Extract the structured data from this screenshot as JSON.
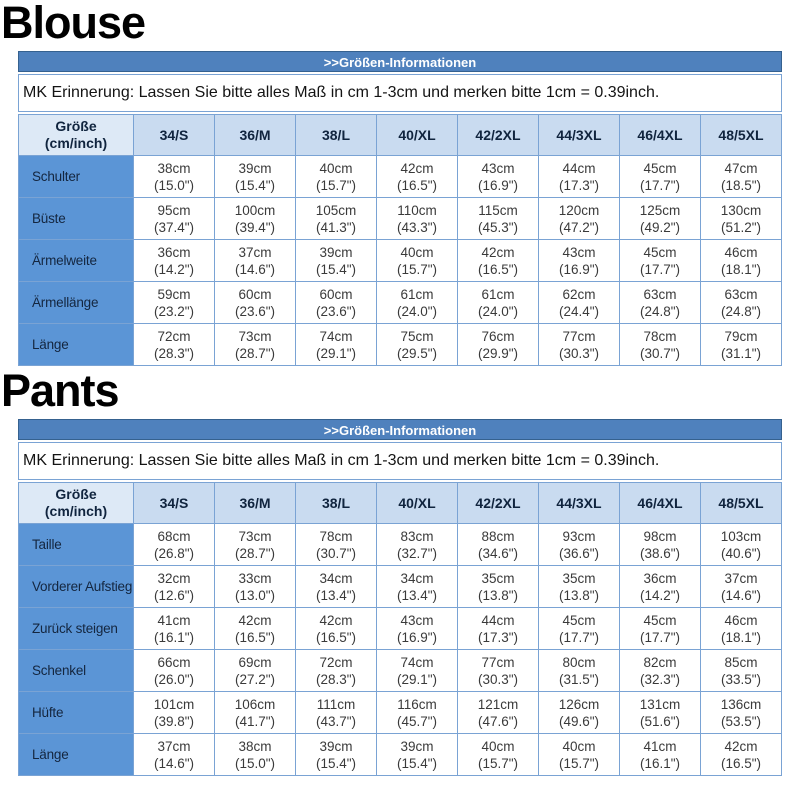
{
  "colors": {
    "bar_background": "#4f81bd",
    "column_header_background": "#c9dbf0",
    "corner_header_background": "#dde9f6",
    "row_label_background": "#5b95d6",
    "table_border": "#7aa3d4",
    "bar_text": "#ffffff"
  },
  "sections": [
    {
      "title": "Blouse",
      "table": {
        "header": ">>Größen-Informationen",
        "note": "MK Erinnerung: Lassen Sie bitte alles Maß in cm 1-3cm und merken bitte 1cm = 0.39inch.",
        "corner": {
          "line1": "Größe",
          "line2": "(cm/inch)"
        },
        "columns": [
          "34/S",
          "36/M",
          "38/L",
          "40/XL",
          "42/2XL",
          "44/3XL",
          "46/4XL",
          "48/5XL"
        ],
        "rows": [
          {
            "label": "Schulter",
            "cm": [
              "38cm",
              "39cm",
              "40cm",
              "42cm",
              "43cm",
              "44cm",
              "45cm",
              "47cm"
            ],
            "inch": [
              "(15.0\")",
              "(15.4\")",
              "(15.7\")",
              "(16.5\")",
              "(16.9\")",
              "(17.3\")",
              "(17.7\")",
              "(18.5\")"
            ]
          },
          {
            "label": "Büste",
            "cm": [
              "95cm",
              "100cm",
              "105cm",
              "110cm",
              "115cm",
              "120cm",
              "125cm",
              "130cm"
            ],
            "inch": [
              "(37.4\")",
              "(39.4\")",
              "(41.3\")",
              "(43.3\")",
              "(45.3\")",
              "(47.2\")",
              "(49.2\")",
              "(51.2\")"
            ]
          },
          {
            "label": "Ärmelweite",
            "cm": [
              "36cm",
              "37cm",
              "39cm",
              "40cm",
              "42cm",
              "43cm",
              "45cm",
              "46cm"
            ],
            "inch": [
              "(14.2\")",
              "(14.6\")",
              "(15.4\")",
              "(15.7\")",
              "(16.5\")",
              "(16.9\")",
              "(17.7\")",
              "(18.1\")"
            ]
          },
          {
            "label": "Ärmellänge",
            "cm": [
              "59cm",
              "60cm",
              "60cm",
              "61cm",
              "61cm",
              "62cm",
              "63cm",
              "63cm"
            ],
            "inch": [
              "(23.2\")",
              "(23.6\")",
              "(23.6\")",
              "(24.0\")",
              "(24.0\")",
              "(24.4\")",
              "(24.8\")",
              "(24.8\")"
            ]
          },
          {
            "label": "Länge",
            "cm": [
              "72cm",
              "73cm",
              "74cm",
              "75cm",
              "76cm",
              "77cm",
              "78cm",
              "79cm"
            ],
            "inch": [
              "(28.3\")",
              "(28.7\")",
              "(29.1\")",
              "(29.5\")",
              "(29.9\")",
              "(30.3\")",
              "(30.7\")",
              "(31.1\")"
            ]
          }
        ]
      }
    },
    {
      "title": "Pants",
      "table": {
        "header": ">>Größen-Informationen",
        "note": "MK Erinnerung: Lassen Sie bitte alles Maß in cm 1-3cm und merken bitte 1cm = 0.39inch.",
        "corner": {
          "line1": "Größe",
          "line2": "(cm/inch)"
        },
        "columns": [
          "34/S",
          "36/M",
          "38/L",
          "40/XL",
          "42/2XL",
          "44/3XL",
          "46/4XL",
          "48/5XL"
        ],
        "rows": [
          {
            "label": "Taille",
            "cm": [
              "68cm",
              "73cm",
              "78cm",
              "83cm",
              "88cm",
              "93cm",
              "98cm",
              "103cm"
            ],
            "inch": [
              "(26.8\")",
              "(28.7\")",
              "(30.7\")",
              "(32.7\")",
              "(34.6\")",
              "(36.6\")",
              "(38.6\")",
              "(40.6\")"
            ]
          },
          {
            "label": "Vorderer Aufstieg",
            "cm": [
              "32cm",
              "33cm",
              "34cm",
              "34cm",
              "35cm",
              "35cm",
              "36cm",
              "37cm"
            ],
            "inch": [
              "(12.6\")",
              "(13.0\")",
              "(13.4\")",
              "(13.4\")",
              "(13.8\")",
              "(13.8\")",
              "(14.2\")",
              "(14.6\")"
            ]
          },
          {
            "label": "Zurück steigen",
            "cm": [
              "41cm",
              "42cm",
              "42cm",
              "43cm",
              "44cm",
              "45cm",
              "45cm",
              "46cm"
            ],
            "inch": [
              "(16.1\")",
              "(16.5\")",
              "(16.5\")",
              "(16.9\")",
              "(17.3\")",
              "(17.7\")",
              "(17.7\")",
              "(18.1\")"
            ]
          },
          {
            "label": "Schenkel",
            "cm": [
              "66cm",
              "69cm",
              "72cm",
              "74cm",
              "77cm",
              "80cm",
              "82cm",
              "85cm"
            ],
            "inch": [
              "(26.0\")",
              "(27.2\")",
              "(28.3\")",
              "(29.1\")",
              "(30.3\")",
              "(31.5\")",
              "(32.3\")",
              "(33.5\")"
            ]
          },
          {
            "label": "Hüfte",
            "cm": [
              "101cm",
              "106cm",
              "111cm",
              "116cm",
              "121cm",
              "126cm",
              "131cm",
              "136cm"
            ],
            "inch": [
              "(39.8\")",
              "(41.7\")",
              "(43.7\")",
              "(45.7\")",
              "(47.6\")",
              "(49.6\")",
              "(51.6\")",
              "(53.5\")"
            ]
          },
          {
            "label": "Länge",
            "cm": [
              "37cm",
              "38cm",
              "39cm",
              "39cm",
              "40cm",
              "40cm",
              "41cm",
              "42cm"
            ],
            "inch": [
              "(14.6\")",
              "(15.0\")",
              "(15.4\")",
              "(15.4\")",
              "(15.7\")",
              "(15.7\")",
              "(16.1\")",
              "(16.5\")"
            ]
          }
        ]
      }
    }
  ]
}
